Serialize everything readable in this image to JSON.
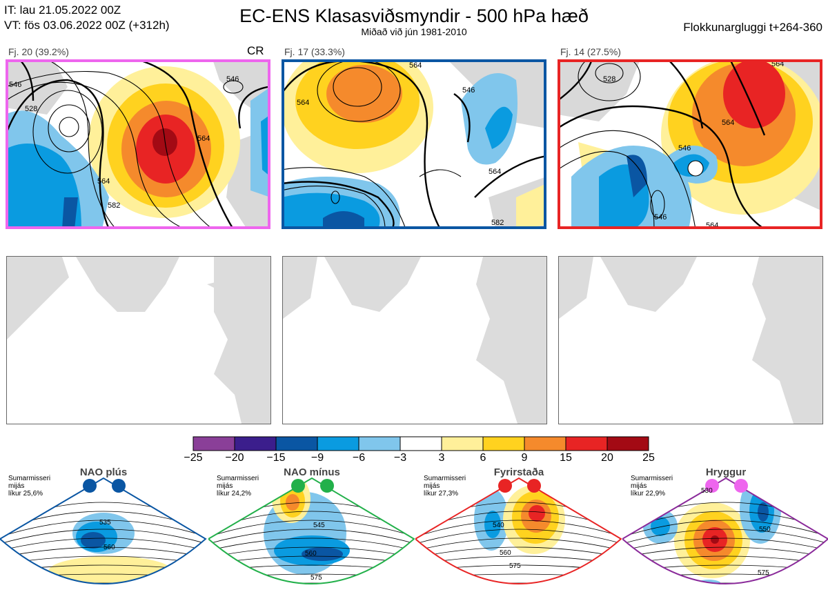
{
  "header": {
    "it_line": "IT: lau 21.05.2022 00Z",
    "vt_line": "VT: fös 03.06.2022 00Z  (+312h)",
    "title": "EC-ENS Klasasviðsmyndir - 500 hPa hæð",
    "subtitle": "Miðað við jún 1981-2010",
    "window": "Flokkunargluggi t+264-360"
  },
  "clusters": [
    {
      "label": "Fj. 20 (39.2%)",
      "tag": "CR",
      "frame_color": "#ee66ee",
      "contours": [
        "528",
        "546",
        "564",
        "582",
        "564",
        "546"
      ]
    },
    {
      "label": "Fj. 17 (33.3%)",
      "tag": "",
      "frame_color": "#0a56a3",
      "contours": [
        "564",
        "546",
        "564",
        "582",
        "564"
      ]
    },
    {
      "label": "Fj. 14 (27.5%)",
      "tag": "",
      "frame_color": "#e82424",
      "contours": [
        "564",
        "528",
        "546",
        "564",
        "546",
        "564"
      ]
    }
  ],
  "colorbar": {
    "ticks": [
      "−25",
      "−20",
      "−15",
      "−9",
      "−6",
      "−3",
      "3",
      "6",
      "9",
      "15",
      "20",
      "25"
    ],
    "colors": [
      "#8a3f98",
      "#3b1e8c",
      "#0a56a3",
      "#0a9be0",
      "#80c6ec",
      "#ffffff",
      "#fff09a",
      "#ffd21f",
      "#f58a2c",
      "#e82424",
      "#a30a14"
    ]
  },
  "regimes": [
    {
      "name": "NAO plús",
      "note": [
        "Sumarmisseri",
        "mijás",
        "líkur 25,6%"
      ],
      "dot_color": "#0a56a3",
      "frame_color": "#0a56a3",
      "contours": [
        "535",
        "560"
      ]
    },
    {
      "name": "NAO mínus",
      "note": [
        "Sumarmisseri",
        "mijás",
        "líkur 24,2%"
      ],
      "dot_color": "#22b04a",
      "frame_color": "#22b04a",
      "contours": [
        "545",
        "560",
        "575"
      ]
    },
    {
      "name": "Fyrirstaða",
      "note": [
        "Sumarmisseri",
        "mijás",
        "líkur 27,3%"
      ],
      "dot_color": "#e82424",
      "frame_color": "#e82424",
      "contours": [
        "540",
        "560",
        "575"
      ]
    },
    {
      "name": "Hryggur",
      "note": [
        "Sumarmisseri",
        "mijás",
        "líkur 22,9%"
      ],
      "dot_color": "#ee66ee",
      "frame_color": "#8a2a9a",
      "contours": [
        "530",
        "550",
        "575"
      ]
    }
  ]
}
